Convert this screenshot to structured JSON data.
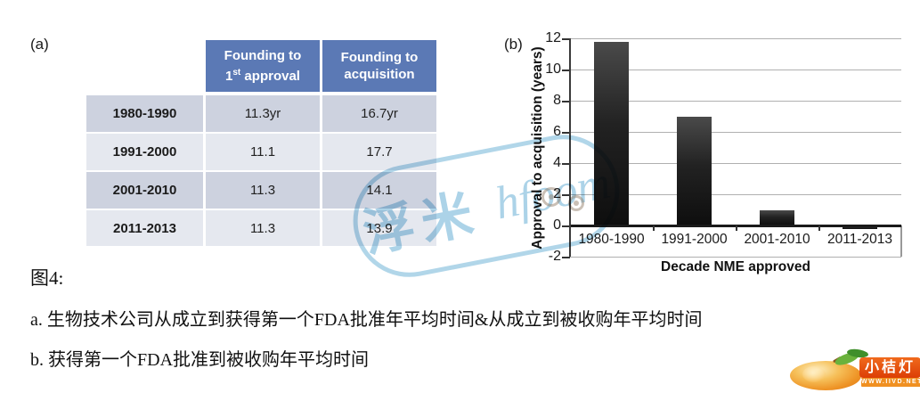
{
  "panels": {
    "a_label": "(a)",
    "b_label": "(b)"
  },
  "table": {
    "headers": {
      "col1": {
        "line1": "Founding to",
        "num": "1",
        "sup": "st",
        "rest": " approval"
      },
      "col2": {
        "line1": "Founding to",
        "line2": "acquisition"
      }
    },
    "rows": [
      {
        "label": "1980-1990",
        "first_approval": "11.3yr",
        "acquisition": "16.7yr"
      },
      {
        "label": "1991-2000",
        "first_approval": "11.1",
        "acquisition": "17.7"
      },
      {
        "label": "2001-2010",
        "first_approval": "11.3",
        "acquisition": "14.1"
      },
      {
        "label": "2011-2013",
        "first_approval": "11.3",
        "acquisition": "13.9"
      }
    ]
  },
  "chart_data": {
    "type": "bar",
    "categories": [
      "1980-1990",
      "1991-2000",
      "2001-2010",
      "2011-2013"
    ],
    "values": [
      11.8,
      7.0,
      1.0,
      -0.15
    ],
    "title": "",
    "xlabel": "Decade NME approved",
    "ylabel": "Approval to acquisition (years)",
    "ylim": [
      -2,
      12
    ],
    "yticks": [
      -2,
      0,
      2,
      4,
      6,
      8,
      10,
      12
    ],
    "grid": true,
    "legend": "none",
    "bar_color": "#1a1a1a",
    "gridline_color": "#b0b0b0"
  },
  "captions": {
    "figure": "图4:",
    "line_a": "a. 生物技术公司从成立到获得第一个FDA批准年平均时间&从成立到被收购年平均时间",
    "line_b": "b. 获得第一个FDA批准到被收购年平均时间"
  },
  "watermark": {
    "text_cn": "浮米",
    "text_en": "hfoom",
    "color": "#a8d1e7"
  },
  "logo": {
    "name": "小桔灯",
    "url": "WWW.IIVD.NET",
    "accent": "#dc3e06"
  },
  "colors": {
    "table_header_bg": "#5b79b5",
    "row_dark": "#cdd2df",
    "row_light": "#e5e8ef"
  }
}
